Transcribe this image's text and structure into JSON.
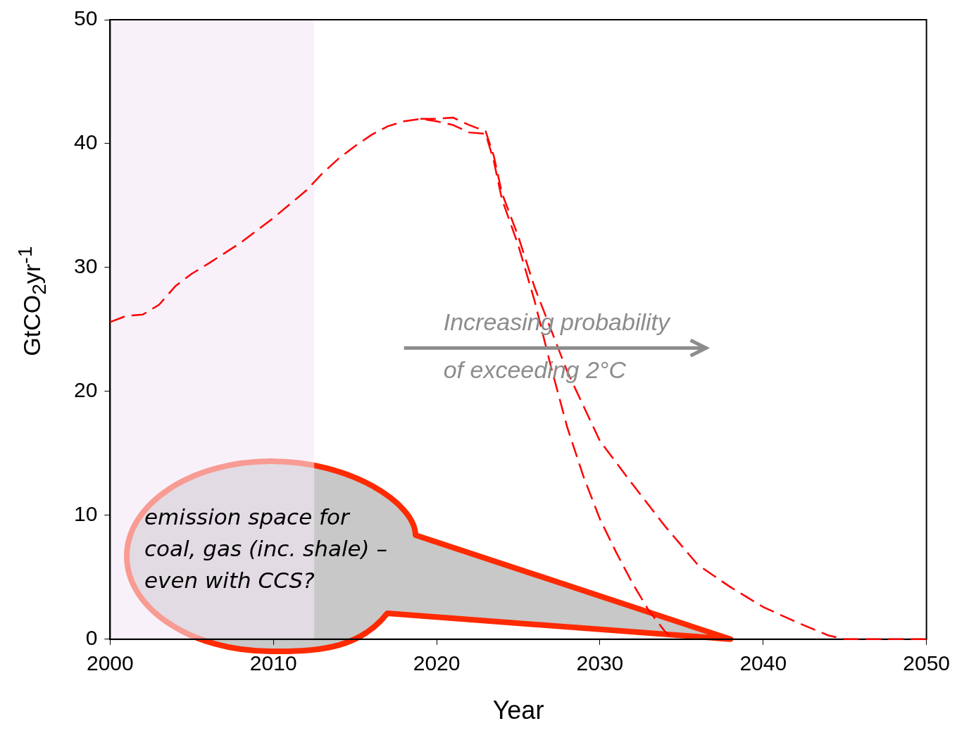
{
  "chart_data": {
    "type": "line",
    "xlabel": "Year",
    "ylabel": "GtCO$_{2}$yr$^{-1}$",
    "xlim": [
      2000,
      2050
    ],
    "xticks": [
      2000,
      2010,
      2020,
      2030,
      2040,
      2050
    ],
    "ylim": [
      0,
      50
    ],
    "yticks": [
      0,
      10,
      20,
      30,
      40,
      50
    ],
    "grid": false,
    "legend": false,
    "marker": "none",
    "line_style": "dashed",
    "bands": [
      {
        "axis": "x",
        "from": 2000,
        "to": 2012.5,
        "color": "#f3e8f5"
      }
    ],
    "series": [
      {
        "color": "#ff0000",
        "x": [
          2000,
          2001,
          2002,
          2003,
          2004,
          2005,
          2006,
          2008,
          2010,
          2012,
          2013,
          2014,
          2015,
          2016,
          2017,
          2018,
          2019,
          2020,
          2021,
          2022,
          2023,
          2023.5,
          2024,
          2025,
          2026,
          2027,
          2028,
          2029,
          2030,
          2031,
          2032,
          2033,
          2034,
          2034.5
        ],
        "values": [
          25.6,
          26.1,
          26.2,
          27.0,
          28.5,
          29.5,
          30.3,
          32.0,
          34.0,
          36.2,
          37.6,
          38.8,
          39.8,
          40.7,
          41.4,
          41.8,
          42.0,
          41.8,
          41.5,
          40.9,
          40.8,
          38.6,
          35.5,
          31.8,
          27.3,
          22.0,
          17.1,
          13.1,
          9.7,
          7.0,
          4.5,
          2.3,
          0.6,
          0
        ]
      },
      {
        "color": "#ff0000",
        "x": [
          2019,
          2020,
          2021,
          2022,
          2023,
          2023.5,
          2024,
          2025,
          2026,
          2027,
          2028,
          2029,
          2030,
          2032,
          2034,
          2036,
          2038,
          2040,
          2042,
          2044,
          2045,
          2050
        ],
        "values": [
          42.0,
          42.0,
          42.1,
          41.5,
          41.0,
          39.0,
          36.0,
          32.5,
          28.4,
          25.0,
          21.6,
          18.8,
          16.0,
          12.5,
          9.1,
          6.0,
          4.2,
          2.6,
          1.4,
          0.3,
          0,
          0
        ]
      }
    ],
    "annotations": [
      "Increasing probability",
      "of exceeding 2°C",
      "emission space for coal, gas (inc. shale) – even with CCS?"
    ]
  }
}
